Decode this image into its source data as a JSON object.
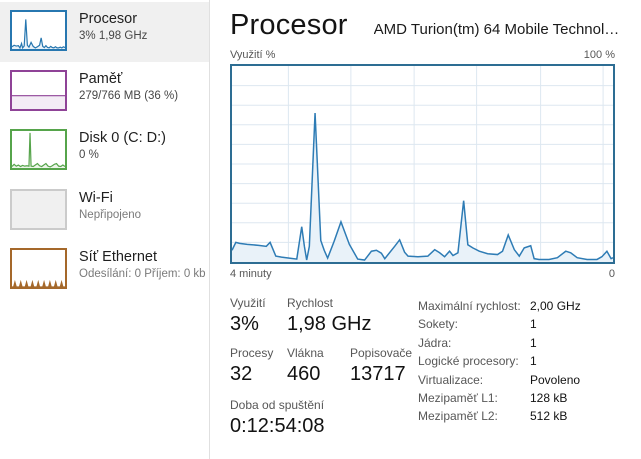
{
  "sidebar": {
    "items": [
      {
        "id": "cpu",
        "title": "Procesor",
        "subtitle": "3% 1,98 GHz",
        "selected": true,
        "mini": {
          "border": "#2777b0",
          "bg": "#ffffff",
          "line": "#2777b0",
          "fill": "#e9f2f9",
          "points": [
            [
              0,
              6
            ],
            [
              4,
              10
            ],
            [
              8,
              8
            ],
            [
              12,
              9
            ],
            [
              15,
              3
            ],
            [
              18,
              15
            ],
            [
              20,
              3
            ],
            [
              23,
              8
            ],
            [
              26,
              80
            ],
            [
              29,
              10
            ],
            [
              32,
              5
            ],
            [
              36,
              18
            ],
            [
              40,
              7
            ],
            [
              44,
              3
            ],
            [
              48,
              6
            ],
            [
              52,
              10
            ],
            [
              55,
              30
            ],
            [
              58,
              7
            ],
            [
              61,
              4
            ],
            [
              64,
              9
            ],
            [
              67,
              4
            ],
            [
              70,
              3
            ],
            [
              73,
              7
            ],
            [
              76,
              4
            ],
            [
              79,
              3
            ],
            [
              82,
              6
            ],
            [
              85,
              3
            ],
            [
              88,
              3
            ],
            [
              91,
              5
            ],
            [
              94,
              3
            ],
            [
              97,
              6
            ],
            [
              100,
              4
            ]
          ]
        }
      },
      {
        "id": "memory",
        "title": "Paměť",
        "subtitle": "279/766 MB (36 %)",
        "selected": false,
        "mini": {
          "border": "#8f4397",
          "bg": "#ffffff",
          "line": "#8f4397",
          "fill": "#f3ecf5",
          "points": [
            [
              0,
              36
            ],
            [
              100,
              36
            ]
          ]
        }
      },
      {
        "id": "disk",
        "title": "Disk 0 (C: D:)",
        "subtitle": "0 %",
        "selected": false,
        "mini": {
          "border": "#56a44b",
          "bg": "#ffffff",
          "line": "#56a44b",
          "fill": "#edf5ea",
          "points": [
            [
              0,
              4
            ],
            [
              4,
              10
            ],
            [
              8,
              5
            ],
            [
              12,
              8
            ],
            [
              16,
              4
            ],
            [
              20,
              7
            ],
            [
              24,
              5
            ],
            [
              28,
              6
            ],
            [
              32,
              5
            ],
            [
              34,
              95
            ],
            [
              36,
              5
            ],
            [
              40,
              4
            ],
            [
              44,
              8
            ],
            [
              48,
              12
            ],
            [
              52,
              6
            ],
            [
              56,
              4
            ],
            [
              60,
              8
            ],
            [
              64,
              12
            ],
            [
              68,
              5
            ],
            [
              72,
              3
            ],
            [
              76,
              6
            ],
            [
              80,
              10
            ],
            [
              84,
              12
            ],
            [
              88,
              5
            ],
            [
              92,
              4
            ],
            [
              96,
              8
            ],
            [
              100,
              4
            ]
          ]
        }
      },
      {
        "id": "wifi",
        "title": "Wi-Fi",
        "subtitle": "Nepřipojeno",
        "selected": false,
        "mini": {
          "border": "#cbcbcb",
          "bg": "#f0f0f0",
          "line": null,
          "fill": null,
          "points": null
        }
      },
      {
        "id": "ethernet",
        "title": "Síť Ethernet",
        "subtitle": "Odesílání: 0 Příjem: 0 kb",
        "selected": false,
        "mini": {
          "border": "#a5682a",
          "bg": "#ffffff",
          "line": "#a5682a",
          "fill": "#a5682a",
          "points": [
            [
              0,
              0
            ],
            [
              3,
              0
            ],
            [
              5.5,
              13
            ],
            [
              8,
              0
            ],
            [
              14,
              0
            ],
            [
              16.5,
              13
            ],
            [
              19,
              0
            ],
            [
              25,
              0
            ],
            [
              27.5,
              13
            ],
            [
              30,
              0
            ],
            [
              36,
              0
            ],
            [
              38.5,
              13
            ],
            [
              41,
              0
            ],
            [
              47,
              0
            ],
            [
              49.5,
              13
            ],
            [
              52,
              0
            ],
            [
              58,
              0
            ],
            [
              60.5,
              13
            ],
            [
              63,
              0
            ],
            [
              69,
              0
            ],
            [
              71.5,
              13
            ],
            [
              74,
              0
            ],
            [
              80,
              0
            ],
            [
              82.5,
              13
            ],
            [
              85,
              0
            ],
            [
              91,
              0
            ],
            [
              93.5,
              13
            ],
            [
              96,
              0
            ],
            [
              100,
              0
            ]
          ]
        }
      }
    ]
  },
  "header": {
    "title": "Procesor",
    "subtitle": "AMD Turion(tm) 64 Mobile Technol…"
  },
  "chart_data": {
    "type": "area",
    "title": "Procesor — Využití %",
    "ylabel": "Využití %",
    "ymax_label": "100 %",
    "xleft_label": "4 minuty",
    "xright_label": "0",
    "ylim": [
      0,
      100
    ],
    "grid_on": true,
    "line_color": "#2e7cb5",
    "fill_color": "#e9f2f9",
    "border_color": "#2d6d93",
    "grid_color": "#dde7f0",
    "grid": {
      "v": [
        14.8,
        31.2,
        47.8,
        64.2,
        81,
        97.4
      ],
      "h": [
        10,
        20,
        30,
        40,
        50,
        60,
        70,
        80,
        90
      ]
    },
    "points": [
      [
        0,
        6
      ],
      [
        1,
        10
      ],
      [
        2,
        9.5
      ],
      [
        4,
        9
      ],
      [
        7,
        8.5
      ],
      [
        9,
        8
      ],
      [
        10,
        10
      ],
      [
        11.5,
        3
      ],
      [
        13,
        2.5
      ],
      [
        15,
        2
      ],
      [
        17,
        1.5
      ],
      [
        18.3,
        18
      ],
      [
        19,
        8
      ],
      [
        19.6,
        1
      ],
      [
        20.3,
        8
      ],
      [
        21.8,
        76
      ],
      [
        23.3,
        11
      ],
      [
        24.2,
        6
      ],
      [
        25.1,
        2
      ],
      [
        26.8,
        10.5
      ],
      [
        28.6,
        20.5
      ],
      [
        30.8,
        9
      ],
      [
        33,
        1.5
      ],
      [
        34.8,
        1
      ],
      [
        36.6,
        5.5
      ],
      [
        37.9,
        6
      ],
      [
        39.2,
        4.5
      ],
      [
        40.1,
        1.7
      ],
      [
        42.7,
        8
      ],
      [
        44,
        11.3
      ],
      [
        45.3,
        5
      ],
      [
        46.2,
        3
      ],
      [
        48.8,
        2.7
      ],
      [
        51.4,
        3
      ],
      [
        53.2,
        6.3
      ],
      [
        54.5,
        4.7
      ],
      [
        55.8,
        2.7
      ],
      [
        57.1,
        5.5
      ],
      [
        58,
        3.3
      ],
      [
        59.3,
        4.7
      ],
      [
        60.8,
        31.3
      ],
      [
        61.9,
        8.8
      ],
      [
        63.2,
        7.2
      ],
      [
        64.9,
        5.5
      ],
      [
        67.1,
        4.2
      ],
      [
        69.7,
        3.8
      ],
      [
        71,
        5.5
      ],
      [
        72.5,
        13.8
      ],
      [
        74.1,
        6.3
      ],
      [
        75.4,
        3
      ],
      [
        76.7,
        7.2
      ],
      [
        78.4,
        8.3
      ],
      [
        79.3,
        1.7
      ],
      [
        80.6,
        1.3
      ],
      [
        83.2,
        1.3
      ],
      [
        85.4,
        2.2
      ],
      [
        87.6,
        5.5
      ],
      [
        88.9,
        4.7
      ],
      [
        90.6,
        2.2
      ],
      [
        93.2,
        1.3
      ],
      [
        95.8,
        1.3
      ],
      [
        97.1,
        2.7
      ],
      [
        98.4,
        5.5
      ],
      [
        99.5,
        1.7
      ],
      [
        100,
        2.2
      ]
    ]
  },
  "stats": {
    "left": {
      "usage_label": "Využití",
      "usage_value": "3%",
      "speed_label": "Rychlost",
      "speed_value": "1,98 GHz",
      "processes_label": "Procesy",
      "processes_value": "32",
      "threads_label": "Vlákna",
      "threads_value": "460",
      "handles_label": "Popisovače",
      "handles_value": "13717",
      "uptime_label": "Doba od spuštění",
      "uptime_value": "0:12:54:08"
    },
    "right": [
      {
        "label": "Maximální rychlost:",
        "value": "2,00 GHz"
      },
      {
        "label": "Sokety:",
        "value": "1"
      },
      {
        "label": "Jádra:",
        "value": "1"
      },
      {
        "label": "Logické procesory:",
        "value": "1"
      },
      {
        "label": "Virtualizace:",
        "value": "Povoleno"
      },
      {
        "label": "Mezipaměť L1:",
        "value": "128 kB"
      },
      {
        "label": "Mezipaměť L2:",
        "value": "512 kB"
      }
    ]
  }
}
